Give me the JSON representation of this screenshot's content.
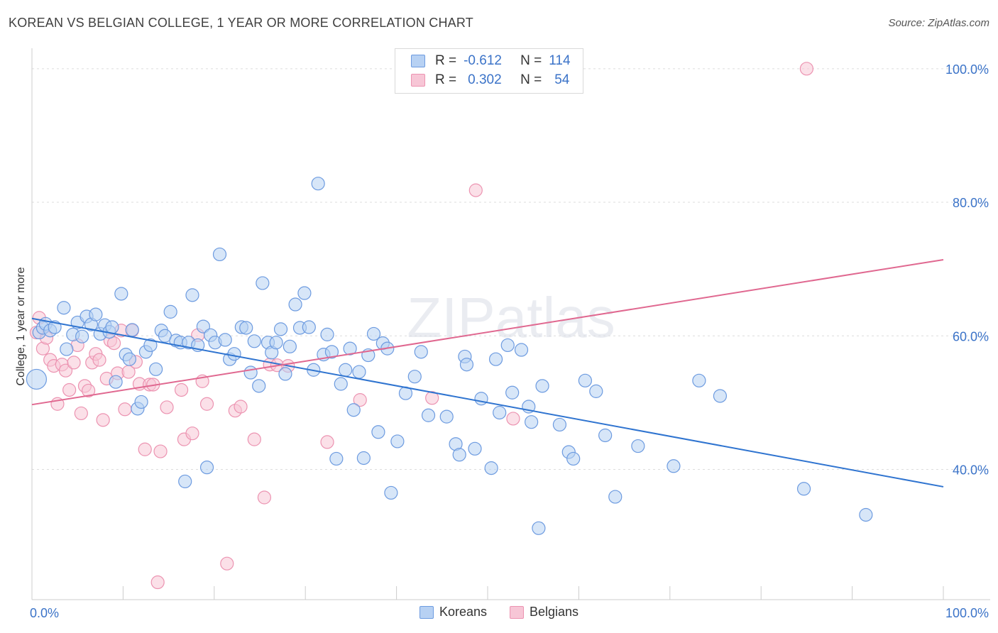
{
  "title": "KOREAN VS BELGIAN COLLEGE, 1 YEAR OR MORE CORRELATION CHART",
  "source": "Source: ZipAtlas.com",
  "watermark": "ZIPatlas",
  "legend_top": {
    "rows": [
      {
        "r_label": "R =",
        "r_value": "-0.612",
        "n_label": "N =",
        "n_value": "114"
      },
      {
        "r_label": "R =",
        "r_value": "0.302",
        "n_label": "N =",
        "n_value": "54"
      }
    ]
  },
  "colors": {
    "korean_fill": "#b7d1f3",
    "korean_stroke": "#6d9be0",
    "korean_line": "#2f74d0",
    "belgian_fill": "#f7c6d6",
    "belgian_stroke": "#ec93b1",
    "belgian_line": "#e06890",
    "tick_blue": "#3b73c8"
  },
  "chart_data": {
    "type": "scatter",
    "title": "KOREAN VS BELGIAN COLLEGE, 1 YEAR OR MORE CORRELATION CHART",
    "xlabel": "",
    "ylabel": "College, 1 year or more",
    "x_ticks": [
      "0.0%",
      "100.0%"
    ],
    "y_ticks": [
      {
        "value": 100,
        "label": "100.0%"
      },
      {
        "value": 80,
        "label": "80.0%"
      },
      {
        "value": 60,
        "label": "60.0%"
      },
      {
        "value": 40,
        "label": "40.0%"
      }
    ],
    "xlim": [
      0,
      100
    ],
    "ylim": [
      20.5,
      102
    ],
    "grid": true,
    "legend_position": "bottom",
    "series": [
      {
        "name": "Koreans",
        "r": -0.612,
        "n": 114,
        "trend": [
          [
            0,
            62.6
          ],
          [
            100,
            37.4
          ]
        ],
        "points": [
          [
            0.5,
            53.5
          ],
          [
            0.8,
            60.5
          ],
          [
            1.2,
            61.2
          ],
          [
            1.5,
            61.8
          ],
          [
            2.0,
            60.8
          ],
          [
            2.5,
            61.3
          ],
          [
            3.5,
            64.2
          ],
          [
            3.8,
            58.0
          ],
          [
            4.5,
            60.2
          ],
          [
            5.0,
            62.0
          ],
          [
            5.5,
            59.9
          ],
          [
            6.0,
            62.9
          ],
          [
            6.5,
            61.7
          ],
          [
            7.0,
            63.2
          ],
          [
            7.5,
            60.3
          ],
          [
            8.0,
            61.6
          ],
          [
            8.5,
            60.6
          ],
          [
            8.8,
            61.3
          ],
          [
            9.2,
            53.1
          ],
          [
            9.8,
            66.3
          ],
          [
            10.3,
            57.2
          ],
          [
            10.7,
            56.5
          ],
          [
            11.0,
            60.9
          ],
          [
            11.6,
            49.1
          ],
          [
            12.0,
            50.1
          ],
          [
            12.5,
            57.6
          ],
          [
            13.0,
            58.6
          ],
          [
            13.6,
            55.0
          ],
          [
            14.2,
            60.8
          ],
          [
            14.6,
            60.0
          ],
          [
            15.2,
            63.6
          ],
          [
            15.8,
            59.3
          ],
          [
            16.3,
            59.0
          ],
          [
            16.8,
            38.2
          ],
          [
            17.2,
            59.0
          ],
          [
            17.6,
            66.1
          ],
          [
            18.2,
            58.6
          ],
          [
            18.8,
            61.4
          ],
          [
            19.2,
            40.3
          ],
          [
            19.6,
            60.1
          ],
          [
            20.1,
            59.0
          ],
          [
            20.6,
            72.2
          ],
          [
            21.2,
            59.4
          ],
          [
            21.7,
            56.5
          ],
          [
            22.2,
            57.3
          ],
          [
            23.0,
            61.3
          ],
          [
            23.5,
            61.2
          ],
          [
            24.0,
            54.5
          ],
          [
            24.4,
            59.2
          ],
          [
            24.9,
            52.5
          ],
          [
            25.3,
            67.9
          ],
          [
            25.9,
            59.0
          ],
          [
            26.3,
            57.5
          ],
          [
            26.8,
            59.0
          ],
          [
            27.3,
            61.0
          ],
          [
            27.8,
            54.3
          ],
          [
            28.3,
            58.4
          ],
          [
            28.9,
            64.7
          ],
          [
            29.4,
            61.2
          ],
          [
            29.9,
            66.4
          ],
          [
            30.4,
            61.3
          ],
          [
            30.9,
            54.9
          ],
          [
            31.4,
            82.8
          ],
          [
            32.0,
            57.2
          ],
          [
            32.4,
            60.2
          ],
          [
            32.9,
            57.6
          ],
          [
            33.4,
            41.6
          ],
          [
            33.9,
            52.8
          ],
          [
            34.4,
            54.9
          ],
          [
            34.9,
            58.1
          ],
          [
            35.3,
            48.9
          ],
          [
            35.9,
            54.6
          ],
          [
            36.4,
            41.7
          ],
          [
            36.9,
            57.1
          ],
          [
            37.5,
            60.3
          ],
          [
            38.0,
            45.6
          ],
          [
            38.5,
            58.9
          ],
          [
            39.0,
            58.1
          ],
          [
            39.4,
            36.5
          ],
          [
            40.1,
            44.2
          ],
          [
            41.0,
            51.4
          ],
          [
            42.0,
            53.9
          ],
          [
            42.7,
            57.6
          ],
          [
            43.5,
            48.1
          ],
          [
            45.5,
            47.9
          ],
          [
            46.5,
            43.8
          ],
          [
            46.9,
            42.2
          ],
          [
            47.5,
            56.9
          ],
          [
            47.7,
            55.7
          ],
          [
            48.6,
            43.1
          ],
          [
            49.3,
            50.6
          ],
          [
            50.4,
            40.2
          ],
          [
            50.9,
            56.5
          ],
          [
            51.3,
            48.5
          ],
          [
            52.2,
            58.6
          ],
          [
            52.7,
            51.5
          ],
          [
            53.7,
            57.9
          ],
          [
            54.5,
            49.4
          ],
          [
            54.8,
            47.1
          ],
          [
            55.6,
            31.2
          ],
          [
            56.0,
            52.5
          ],
          [
            57.9,
            46.7
          ],
          [
            58.9,
            42.6
          ],
          [
            59.4,
            41.6
          ],
          [
            60.7,
            53.3
          ],
          [
            61.9,
            51.7
          ],
          [
            62.9,
            45.1
          ],
          [
            64.0,
            35.9
          ],
          [
            66.5,
            43.5
          ],
          [
            70.4,
            40.5
          ],
          [
            73.2,
            53.3
          ],
          [
            75.5,
            51.0
          ],
          [
            84.7,
            37.1
          ],
          [
            91.5,
            33.2
          ]
        ]
      },
      {
        "name": "Belgians",
        "r": 0.302,
        "n": 54,
        "trend": [
          [
            0,
            49.7
          ],
          [
            100,
            71.4
          ]
        ],
        "points": [
          [
            0.5,
            60.5
          ],
          [
            0.8,
            62.7
          ],
          [
            1.2,
            58.1
          ],
          [
            1.6,
            59.7
          ],
          [
            2.0,
            56.4
          ],
          [
            2.4,
            55.5
          ],
          [
            2.8,
            49.8
          ],
          [
            3.3,
            55.7
          ],
          [
            3.7,
            54.8
          ],
          [
            4.1,
            51.9
          ],
          [
            4.6,
            56.0
          ],
          [
            5.0,
            58.6
          ],
          [
            5.4,
            48.4
          ],
          [
            5.8,
            52.5
          ],
          [
            6.2,
            51.8
          ],
          [
            6.6,
            56.0
          ],
          [
            7.0,
            57.3
          ],
          [
            7.4,
            56.4
          ],
          [
            7.8,
            47.4
          ],
          [
            8.2,
            53.6
          ],
          [
            8.6,
            59.3
          ],
          [
            9.0,
            58.9
          ],
          [
            9.4,
            54.4
          ],
          [
            9.8,
            60.8
          ],
          [
            10.2,
            49.0
          ],
          [
            10.6,
            54.6
          ],
          [
            11.0,
            60.8
          ],
          [
            11.4,
            56.1
          ],
          [
            11.8,
            52.8
          ],
          [
            12.4,
            43.0
          ],
          [
            12.9,
            52.7
          ],
          [
            13.3,
            52.7
          ],
          [
            13.8,
            23.1
          ],
          [
            14.1,
            42.7
          ],
          [
            14.8,
            49.3
          ],
          [
            16.4,
            51.9
          ],
          [
            16.7,
            44.5
          ],
          [
            17.6,
            45.4
          ],
          [
            18.2,
            60.1
          ],
          [
            18.7,
            53.2
          ],
          [
            19.2,
            49.8
          ],
          [
            21.4,
            25.9
          ],
          [
            22.3,
            48.8
          ],
          [
            22.9,
            49.4
          ],
          [
            24.4,
            44.5
          ],
          [
            25.5,
            35.8
          ],
          [
            26.1,
            55.7
          ],
          [
            26.9,
            55.6
          ],
          [
            28.1,
            55.5
          ],
          [
            32.4,
            44.1
          ],
          [
            36.0,
            50.4
          ],
          [
            43.9,
            50.7
          ],
          [
            48.7,
            81.8
          ],
          [
            52.8,
            47.6
          ],
          [
            85.0,
            100.0
          ]
        ]
      }
    ]
  },
  "legend_bottom": {
    "items": [
      {
        "name": "Koreans"
      },
      {
        "name": "Belgians"
      }
    ]
  }
}
